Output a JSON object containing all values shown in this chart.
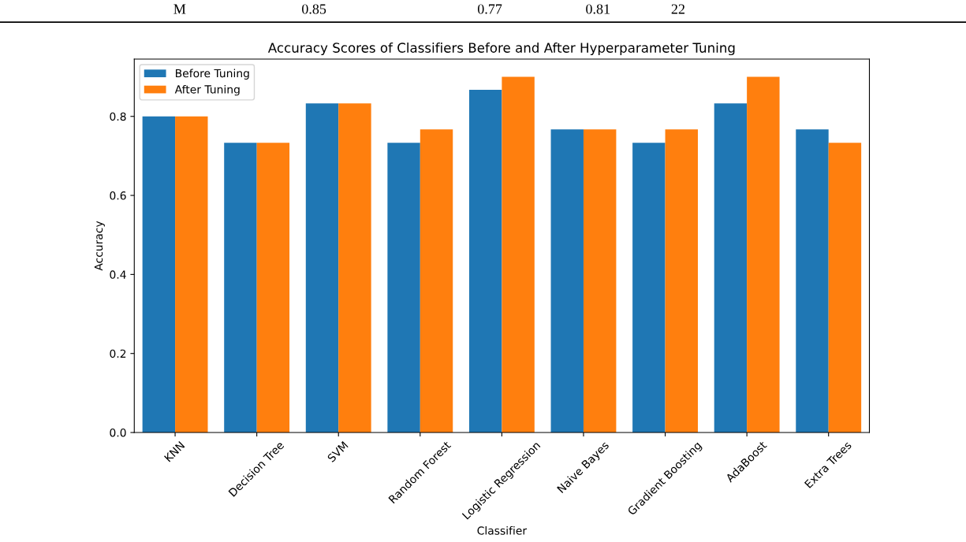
{
  "chart_data": {
    "type": "bar",
    "title": "Accuracy Scores of Classifiers Before and After Hyperparameter Tuning",
    "xlabel": "Classifier",
    "ylabel": "Accuracy",
    "categories": [
      "KNN",
      "Decision Tree",
      "SVM",
      "Random Forest",
      "Logistic Regression",
      "Naive Bayes",
      "Gradient Boosting",
      "AdaBoost",
      "Extra Trees"
    ],
    "series": [
      {
        "name": "Before Tuning",
        "color": "#1f77b4",
        "values": [
          0.8,
          0.733,
          0.833,
          0.733,
          0.867,
          0.767,
          0.733,
          0.833,
          0.767
        ]
      },
      {
        "name": "After Tuning",
        "color": "#ff7f0e",
        "values": [
          0.8,
          0.733,
          0.833,
          0.767,
          0.9,
          0.767,
          0.767,
          0.9,
          0.733
        ]
      }
    ],
    "ylim": [
      0,
      0.945
    ],
    "yticks": [
      {
        "value": 0,
        "label": "0.0"
      },
      0.2,
      0.4,
      0.6,
      0.8
    ],
    "legend": "top left",
    "grid": false,
    "annotations": [
      "M",
      "0.85",
      "0.77",
      "0.81",
      "22"
    ]
  }
}
